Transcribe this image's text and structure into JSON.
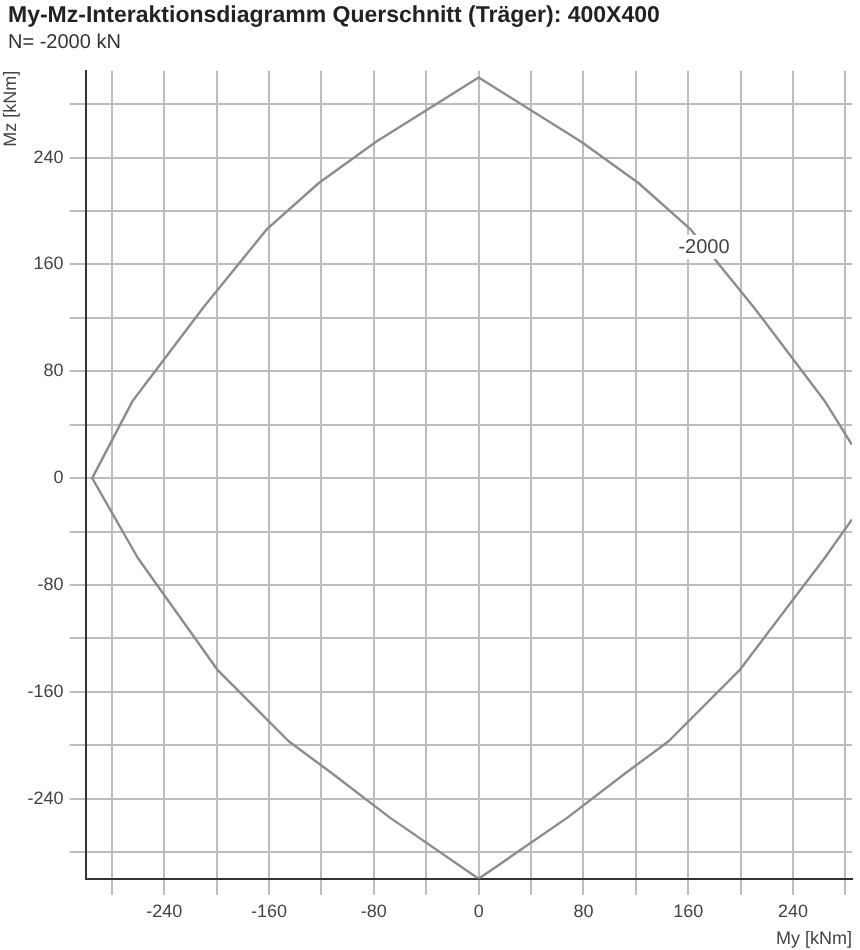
{
  "chart_data": {
    "type": "line",
    "title": "My-Mz-Interaktionsdiagramm Querschnitt (Träger):  400X400",
    "subtitle": "N= -2000 kN",
    "xlabel": "My [kNm]",
    "ylabel": "Mz [kNm]",
    "series": [
      {
        "color": "#8c8c8c",
        "x": [
          285,
          264,
          199,
          145,
          112,
          68,
          0,
          -68,
          -112,
          -145,
          -199,
          -260,
          -295,
          -264,
          -210,
          -162,
          -122,
          -78,
          0,
          78,
          122,
          162,
          210,
          264,
          285
        ],
        "values": [
          -31,
          -60,
          -144,
          -197,
          -221,
          -254,
          -300,
          -254,
          -221,
          -197,
          -144,
          -60,
          0,
          58,
          128,
          186,
          221,
          252,
          300,
          252,
          221,
          186,
          128,
          58,
          25
        ]
      }
    ],
    "xlim": [
      -300,
      285
    ],
    "ylim": [
      -300,
      305
    ],
    "xticks": [
      {
        "value": -280,
        "label": null
      },
      -240,
      {
        "value": -200,
        "label": null
      },
      -160,
      {
        "value": -120,
        "label": null
      },
      -80,
      {
        "value": -40,
        "label": null
      },
      0,
      {
        "value": 40,
        "label": null
      },
      80,
      {
        "value": 120,
        "label": null
      },
      160,
      {
        "value": 200,
        "label": null
      },
      240,
      {
        "value": 280,
        "label": null
      }
    ],
    "yticks": [
      {
        "value": -280,
        "label": null
      },
      -240,
      {
        "value": -200,
        "label": null
      },
      -160,
      {
        "value": -120,
        "label": null
      },
      -80,
      {
        "value": -40,
        "label": null
      },
      0,
      {
        "value": 40,
        "label": null
      },
      80,
      {
        "value": 120,
        "label": null
      },
      160,
      {
        "value": 200,
        "label": null
      },
      240,
      {
        "value": 280,
        "label": null
      }
    ],
    "annotations": [
      {
        "text": "-2000",
        "x": 172,
        "y": 173
      }
    ],
    "grid": true,
    "legend": false,
    "marker": "none",
    "line_style": "solid"
  }
}
